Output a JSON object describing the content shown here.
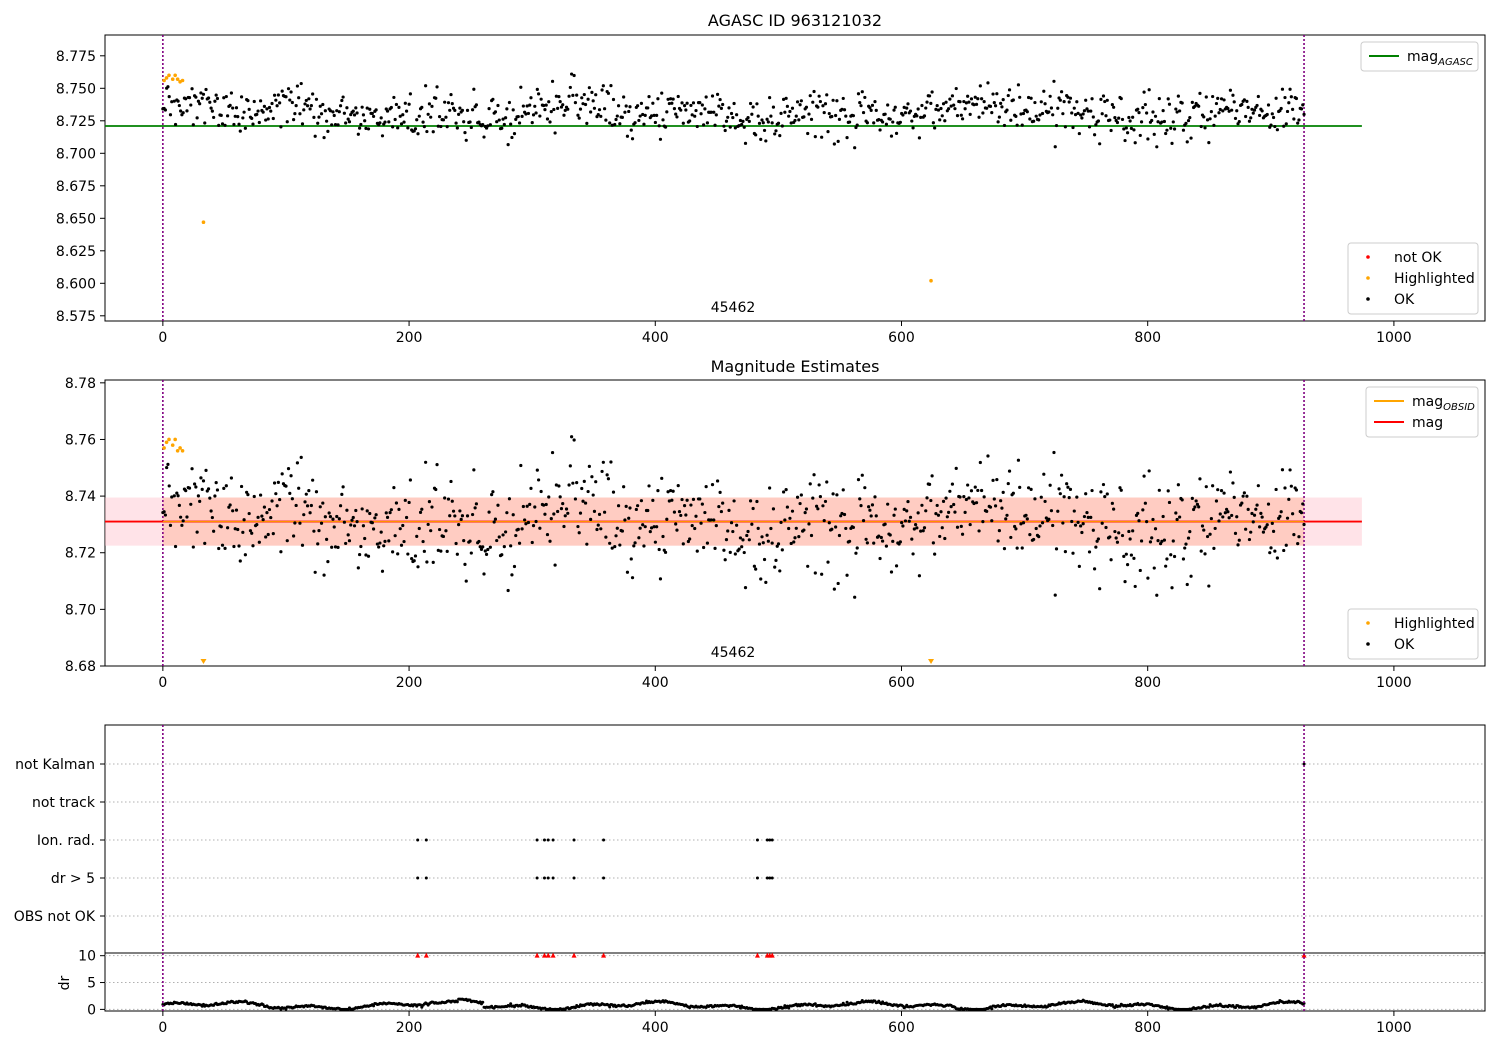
{
  "figure": {
    "title": "AGASC ID 963121032"
  },
  "colors": {
    "ok": "#000000",
    "highlighted": "#ffa500",
    "not_ok": "#ff0000",
    "agasc_line": "#008000",
    "mag_line": "#ff0000",
    "obsid_line": "#ffa500",
    "band_outer": "#ffc0cb",
    "band_inner": "#ffa07a",
    "obsid_marker": "#800080"
  },
  "chart_data": [
    {
      "type": "scatter",
      "title": "AGASC ID 963121032",
      "xlim": [
        -47,
        1074
      ],
      "ylim": [
        8.571,
        8.791
      ],
      "x_ticks": [
        "0",
        "200",
        "400",
        "600",
        "800",
        "1000"
      ],
      "x_tick_values": [
        0,
        200,
        400,
        600,
        800,
        1000
      ],
      "y_ticks": [
        "8.575",
        "8.600",
        "8.625",
        "8.650",
        "8.675",
        "8.700",
        "8.725",
        "8.750",
        "8.775"
      ],
      "y_tick_values": [
        8.575,
        8.6,
        8.625,
        8.65,
        8.675,
        8.7,
        8.725,
        8.75,
        8.775
      ],
      "hlines": [
        {
          "name": "mag_AGASC",
          "y": 8.721,
          "x_range": [
            -47,
            974
          ],
          "color": "#008000"
        }
      ],
      "obsid_boundaries": [
        0,
        927
      ],
      "obsid_label": "45462",
      "obsid_label_x": 463,
      "series": [
        {
          "name": "not OK",
          "color": "#ff0000",
          "points": []
        },
        {
          "name": "Highlighted",
          "color": "#ffa500",
          "points": [
            [
              1,
              8.756
            ],
            [
              3,
              8.758
            ],
            [
              5,
              8.76
            ],
            [
              8,
              8.757
            ],
            [
              10,
              8.76
            ],
            [
              12,
              8.757
            ],
            [
              14,
              8.755
            ],
            [
              16,
              8.756
            ],
            [
              33,
              8.647
            ],
            [
              624,
              8.602
            ]
          ]
        },
        {
          "name": "OK",
          "color": "#000000",
          "generated": true,
          "n": 900,
          "x_range": [
            0,
            927
          ],
          "noise": 0.0085,
          "seed": 963
        }
      ],
      "legends": [
        {
          "entries": [
            {
              "label": "mag",
              "sub": "AGASC",
              "kind": "line",
              "color": "#008000"
            }
          ]
        },
        {
          "entries": [
            {
              "label": "not OK",
              "kind": "dot",
              "color": "#ff0000"
            },
            {
              "label": "Highlighted",
              "kind": "dot",
              "color": "#ffa500"
            },
            {
              "label": "OK",
              "kind": "dot",
              "color": "#000000"
            }
          ]
        }
      ]
    },
    {
      "type": "scatter",
      "title": "Magnitude Estimates",
      "xlim": [
        -47,
        1074
      ],
      "ylim": [
        8.68,
        8.781
      ],
      "x_ticks": [
        "0",
        "200",
        "400",
        "600",
        "800",
        "1000"
      ],
      "x_tick_values": [
        0,
        200,
        400,
        600,
        800,
        1000
      ],
      "y_ticks": [
        "8.68",
        "8.70",
        "8.72",
        "8.74",
        "8.76",
        "8.78"
      ],
      "y_tick_values": [
        8.68,
        8.7,
        8.72,
        8.74,
        8.76,
        8.78
      ],
      "hlines": [
        {
          "name": "mag",
          "y": 8.731,
          "x_range": [
            -47,
            974
          ],
          "color": "#ff0000"
        }
      ],
      "bands": [
        {
          "y_range": [
            8.7225,
            8.7395
          ],
          "x_range": [
            -47,
            974
          ],
          "color": "#ffc0cb",
          "opacity": 0.45
        },
        {
          "y_range": [
            8.7225,
            8.7395
          ],
          "x_range": [
            0,
            927
          ],
          "color": "#ffa07a",
          "opacity": 0.35
        }
      ],
      "obsid_lines": [
        {
          "y": 8.731,
          "x_range": [
            0,
            927
          ],
          "color": "#ffa500"
        }
      ],
      "obsid_boundaries": [
        0,
        927
      ],
      "obsid_label": "45462",
      "obsid_label_x": 463,
      "offscale_markers": [
        {
          "x": 33,
          "color": "#ffa500"
        },
        {
          "x": 624,
          "color": "#ffa500"
        }
      ],
      "series": [
        {
          "name": "Highlighted",
          "color": "#ffa500",
          "points": [
            [
              1,
              8.757
            ],
            [
              3,
              8.759
            ],
            [
              5,
              8.76
            ],
            [
              8,
              8.758
            ],
            [
              10,
              8.76
            ],
            [
              12,
              8.756
            ],
            [
              14,
              8.757
            ],
            [
              16,
              8.756
            ]
          ]
        },
        {
          "name": "OK",
          "color": "#000000",
          "generated": true,
          "n": 900,
          "x_range": [
            0,
            927
          ],
          "noise": 0.0085,
          "seed": 963
        }
      ],
      "legends": [
        {
          "entries": [
            {
              "label": "mag",
              "sub": "OBSID",
              "kind": "line",
              "color": "#ffa500"
            },
            {
              "label": "mag",
              "kind": "line",
              "color": "#ff0000"
            }
          ]
        },
        {
          "entries": [
            {
              "label": "Highlighted",
              "kind": "dot",
              "color": "#ffa500"
            },
            {
              "label": "OK",
              "kind": "dot",
              "color": "#000000"
            }
          ]
        }
      ]
    },
    {
      "type": "scatter",
      "title": "",
      "xlim": [
        -47,
        1074
      ],
      "categories": [
        "not Kalman",
        "not track",
        "Ion. rad.",
        "dr > 5",
        "OBS not OK"
      ],
      "flags": {
        "not Kalman": [
          927
        ],
        "not track": [],
        "Ion. rad.": [
          207,
          214,
          304,
          310,
          313,
          317,
          334,
          358,
          483,
          491,
          493,
          495
        ],
        "dr > 5": [
          207,
          214,
          304,
          310,
          313,
          317,
          334,
          358,
          483,
          491,
          493,
          495
        ],
        "OBS not OK": []
      },
      "obsid_boundaries": [
        0,
        927
      ]
    },
    {
      "type": "scatter",
      "title": "",
      "ylabel": "dr",
      "xlim": [
        -47,
        1074
      ],
      "ylim": [
        -0.3,
        10.5
      ],
      "x_ticks": [
        "0",
        "200",
        "400",
        "600",
        "800",
        "1000"
      ],
      "x_tick_values": [
        0,
        200,
        400,
        600,
        800,
        1000
      ],
      "y_ticks": [
        "0",
        "5",
        "10"
      ],
      "y_tick_values": [
        0,
        5,
        10
      ],
      "clipped_markers": [
        207,
        214,
        304,
        310,
        313,
        317,
        334,
        358,
        483,
        491,
        493,
        495,
        927
      ],
      "series": [
        {
          "name": "dr",
          "color": "#000000",
          "generated": true,
          "n": 900,
          "x_range": [
            0,
            927
          ],
          "seed": 77
        }
      ],
      "obsid_boundaries": [
        0,
        927
      ]
    }
  ]
}
